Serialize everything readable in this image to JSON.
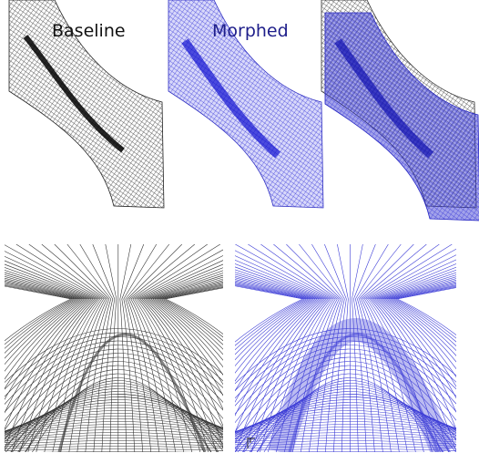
{
  "panels": [
    {
      "label": "Baseline"
    },
    {
      "label": "Morphed"
    }
  ]
}
